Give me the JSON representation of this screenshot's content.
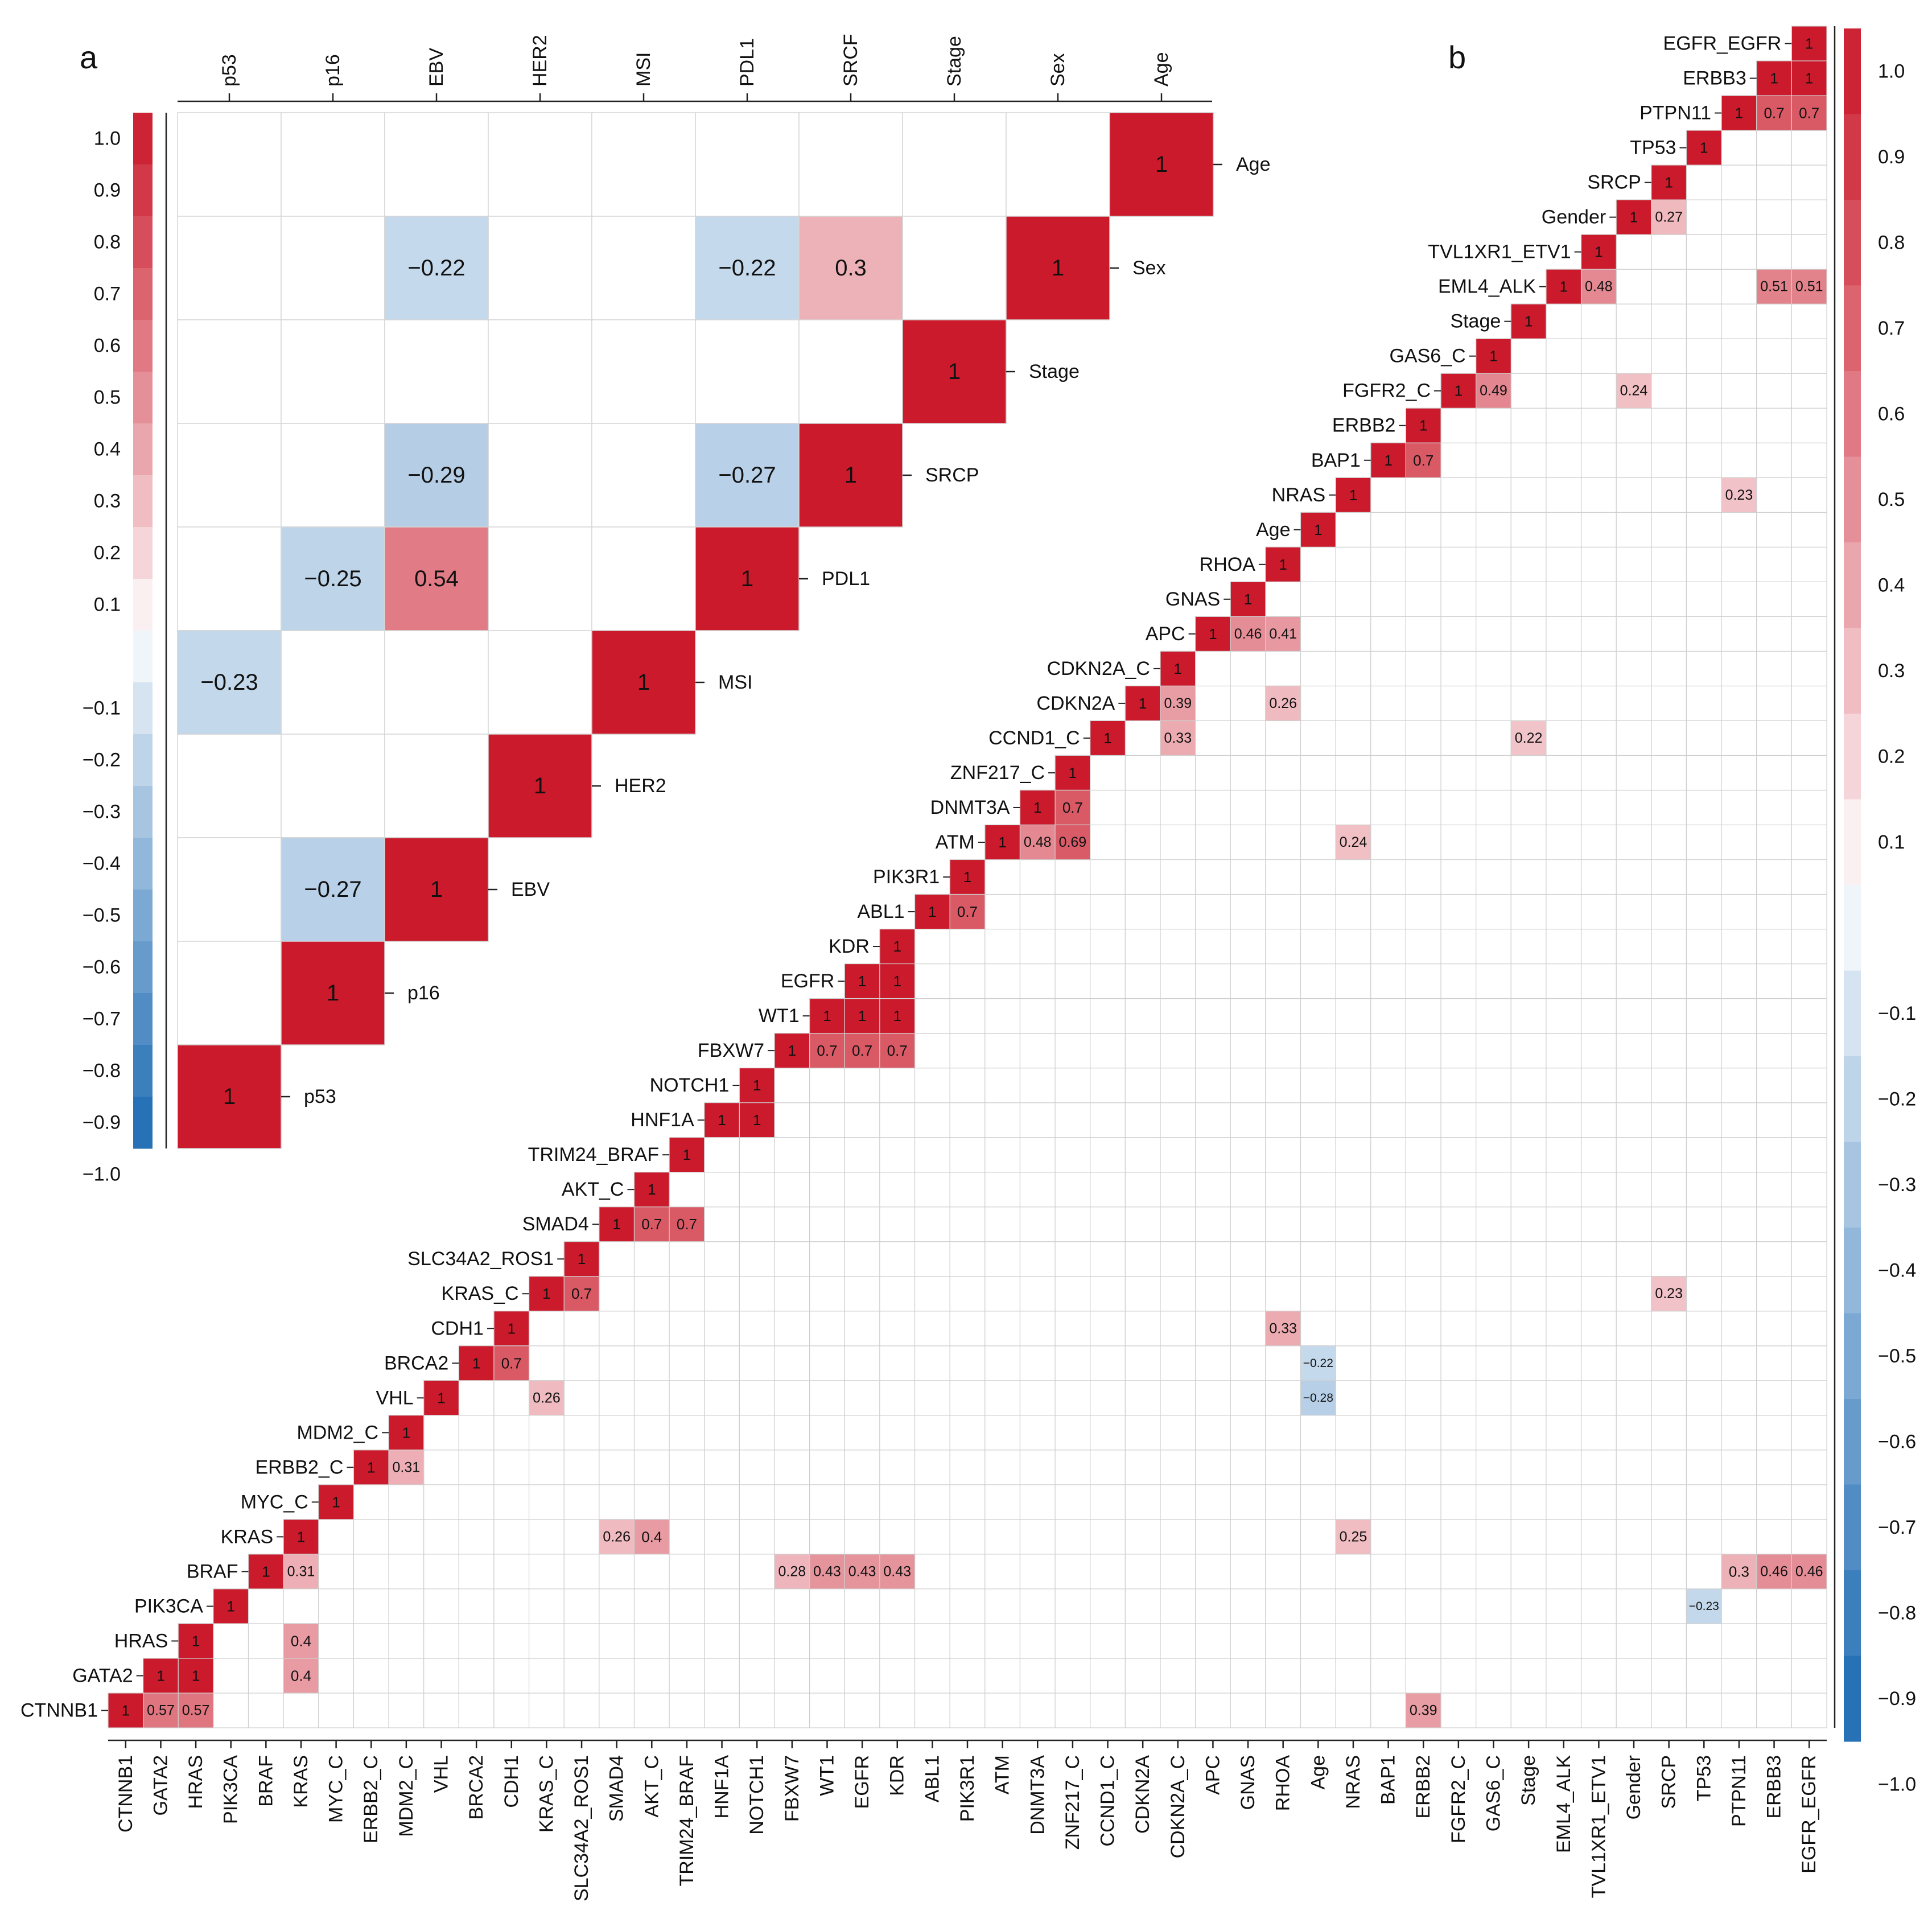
{
  "chart_data": [
    {
      "panel": "a",
      "type": "heatmap",
      "layout": "upper-triangle-correlation",
      "variables": [
        "p53",
        "p16",
        "EBV",
        "HER2",
        "MSI",
        "PDL1",
        "SRCF",
        "Stage",
        "Sex",
        "Age"
      ],
      "row_labels": [
        "Age",
        "Sex",
        "Stage",
        "SRCP",
        "PDL1",
        "MSI",
        "HER2",
        "EBV",
        "p16",
        "p53"
      ],
      "cells": [
        {
          "row": "Age",
          "col": "Age",
          "value": 1,
          "label": "1"
        },
        {
          "row": "Sex",
          "col": "EBV",
          "value": -0.22,
          "label": "−0.22"
        },
        {
          "row": "Sex",
          "col": "PDL1",
          "value": -0.22,
          "label": "−0.22"
        },
        {
          "row": "Sex",
          "col": "SRCF",
          "value": 0.3,
          "label": "0.3"
        },
        {
          "row": "Sex",
          "col": "Sex",
          "value": 1,
          "label": "1"
        },
        {
          "row": "Stage",
          "col": "Stage",
          "value": 1,
          "label": "1"
        },
        {
          "row": "SRCP",
          "col": "EBV",
          "value": -0.29,
          "label": "−0.29"
        },
        {
          "row": "SRCP",
          "col": "PDL1",
          "value": -0.27,
          "label": "−0.27"
        },
        {
          "row": "SRCP",
          "col": "SRCF",
          "value": 1,
          "label": "1"
        },
        {
          "row": "PDL1",
          "col": "p16",
          "value": -0.25,
          "label": "−0.25"
        },
        {
          "row": "PDL1",
          "col": "EBV",
          "value": 0.54,
          "label": "0.54"
        },
        {
          "row": "PDL1",
          "col": "PDL1",
          "value": 1,
          "label": "1"
        },
        {
          "row": "MSI",
          "col": "p53",
          "value": -0.23,
          "label": "−0.23"
        },
        {
          "row": "MSI",
          "col": "MSI",
          "value": 1,
          "label": "1"
        },
        {
          "row": "HER2",
          "col": "HER2",
          "value": 1,
          "label": "1"
        },
        {
          "row": "EBV",
          "col": "p16",
          "value": -0.27,
          "label": "−0.27"
        },
        {
          "row": "EBV",
          "col": "EBV",
          "value": 1,
          "label": "1"
        },
        {
          "row": "p16",
          "col": "p16",
          "value": 1,
          "label": "1"
        },
        {
          "row": "p53",
          "col": "p53",
          "value": 1,
          "label": "1"
        }
      ],
      "colorbar": {
        "range": [
          -1,
          1
        ],
        "ticks": [
          "1.0",
          "0.9",
          "0.8",
          "0.7",
          "0.6",
          "0.5",
          "0.4",
          "0.3",
          "0.2",
          "0.1",
          "−0.1",
          "−0.2",
          "−0.3",
          "−0.4",
          "−0.5",
          "−0.6",
          "−0.7",
          "−0.8",
          "−0.9",
          "−1.0"
        ]
      }
    },
    {
      "panel": "b",
      "type": "heatmap",
      "layout": "lower-triangle-correlation",
      "variables": [
        "CTNNB1",
        "GATA2",
        "HRAS",
        "PIK3CA",
        "BRAF",
        "KRAS",
        "MYC_C",
        "ERBB2_C",
        "MDM2_C",
        "VHL",
        "BRCA2",
        "CDH1",
        "KRAS_C",
        "SLC34A2_ROS1",
        "SMAD4",
        "AKT_C",
        "TRIM24_BRAF",
        "HNF1A",
        "NOTCH1",
        "FBXW7",
        "WT1",
        "EGFR",
        "KDR",
        "ABL1",
        "PIK3R1",
        "ATM",
        "DNMT3A",
        "ZNF217_C",
        "CCND1_C",
        "CDKN2A",
        "CDKN2A_C",
        "APC",
        "GNAS",
        "RHOA",
        "Age",
        "NRAS",
        "BAP1",
        "ERBB2",
        "FGFR2_C",
        "GAS6_C",
        "Stage",
        "EML4_ALK",
        "TVL1XR1_ETV1",
        "Gender",
        "SRCP",
        "TP53",
        "PTPN11",
        "ERBB3",
        "EGFR_EGFR"
      ],
      "cells": [
        {
          "row": "EGFR_EGFR",
          "col": "EGFR_EGFR",
          "value": 1,
          "label": "1"
        },
        {
          "row": "ERBB3",
          "col": "ERBB3",
          "value": 1,
          "label": "1"
        },
        {
          "row": "ERBB3",
          "col": "EGFR_EGFR",
          "value": 1,
          "label": "1"
        },
        {
          "row": "PTPN11",
          "col": "PTPN11",
          "value": 1,
          "label": "1"
        },
        {
          "row": "PTPN11",
          "col": "ERBB3",
          "value": 0.7,
          "label": "0.7"
        },
        {
          "row": "PTPN11",
          "col": "EGFR_EGFR",
          "value": 0.7,
          "label": "0.7"
        },
        {
          "row": "TP53",
          "col": "TP53",
          "value": 1,
          "label": "1"
        },
        {
          "row": "SRCP",
          "col": "SRCP",
          "value": 1,
          "label": "1"
        },
        {
          "row": "Gender",
          "col": "Gender",
          "value": 1,
          "label": "1"
        },
        {
          "row": "Gender",
          "col": "SRCP",
          "value": 0.27,
          "label": "0.27"
        },
        {
          "row": "TVL1XR1_ETV1",
          "col": "TVL1XR1_ETV1",
          "value": 1,
          "label": "1"
        },
        {
          "row": "EML4_ALK",
          "col": "EML4_ALK",
          "value": 1,
          "label": "1"
        },
        {
          "row": "EML4_ALK",
          "col": "TVL1XR1_ETV1",
          "value": 0.48,
          "label": "0.48"
        },
        {
          "row": "EML4_ALK",
          "col": "ERBB3",
          "value": 0.51,
          "label": "0.51"
        },
        {
          "row": "EML4_ALK",
          "col": "EGFR_EGFR",
          "value": 0.51,
          "label": "0.51"
        },
        {
          "row": "Stage",
          "col": "Stage",
          "value": 1,
          "label": "1"
        },
        {
          "row": "GAS6_C",
          "col": "GAS6_C",
          "value": 1,
          "label": "1"
        },
        {
          "row": "FGFR2_C",
          "col": "FGFR2_C",
          "value": 1,
          "label": "1"
        },
        {
          "row": "FGFR2_C",
          "col": "GAS6_C",
          "value": 0.49,
          "label": "0.49"
        },
        {
          "row": "FGFR2_C",
          "col": "Gender",
          "value": 0.24,
          "label": "0.24"
        },
        {
          "row": "ERBB2",
          "col": "ERBB2",
          "value": 1,
          "label": "1"
        },
        {
          "row": "BAP1",
          "col": "BAP1",
          "value": 1,
          "label": "1"
        },
        {
          "row": "BAP1",
          "col": "ERBB2",
          "value": 0.7,
          "label": "0.7"
        },
        {
          "row": "NRAS",
          "col": "NRAS",
          "value": 1,
          "label": "1"
        },
        {
          "row": "NRAS",
          "col": "PTPN11",
          "value": 0.23,
          "label": "0.23"
        },
        {
          "row": "Age",
          "col": "Age",
          "value": 1,
          "label": "1"
        },
        {
          "row": "RHOA",
          "col": "RHOA",
          "value": 1,
          "label": "1"
        },
        {
          "row": "GNAS",
          "col": "GNAS",
          "value": 1,
          "label": "1"
        },
        {
          "row": "APC",
          "col": "APC",
          "value": 1,
          "label": "1"
        },
        {
          "row": "APC",
          "col": "GNAS",
          "value": 0.46,
          "label": "0.46"
        },
        {
          "row": "APC",
          "col": "RHOA",
          "value": 0.41,
          "label": "0.41"
        },
        {
          "row": "CDKN2A_C",
          "col": "CDKN2A_C",
          "value": 1,
          "label": "1"
        },
        {
          "row": "CDKN2A",
          "col": "CDKN2A",
          "value": 1,
          "label": "1"
        },
        {
          "row": "CDKN2A",
          "col": "CDKN2A_C",
          "value": 0.39,
          "label": "0.39"
        },
        {
          "row": "CDKN2A",
          "col": "RHOA",
          "value": 0.26,
          "label": "0.26"
        },
        {
          "row": "CCND1_C",
          "col": "CCND1_C",
          "value": 1,
          "label": "1"
        },
        {
          "row": "CCND1_C",
          "col": "CDKN2A_C",
          "value": 0.33,
          "label": "0.33"
        },
        {
          "row": "CCND1_C",
          "col": "Stage",
          "value": 0.22,
          "label": "0.22"
        },
        {
          "row": "ZNF217_C",
          "col": "ZNF217_C",
          "value": 1,
          "label": "1"
        },
        {
          "row": "DNMT3A",
          "col": "DNMT3A",
          "value": 1,
          "label": "1"
        },
        {
          "row": "DNMT3A",
          "col": "ZNF217_C",
          "value": 0.7,
          "label": "0.7"
        },
        {
          "row": "ATM",
          "col": "ATM",
          "value": 1,
          "label": "1"
        },
        {
          "row": "ATM",
          "col": "DNMT3A",
          "value": 0.48,
          "label": "0.48"
        },
        {
          "row": "ATM",
          "col": "ZNF217_C",
          "value": 0.69,
          "label": "0.69"
        },
        {
          "row": "ATM",
          "col": "NRAS",
          "value": 0.24,
          "label": "0.24"
        },
        {
          "row": "PIK3R1",
          "col": "PIK3R1",
          "value": 1,
          "label": "1"
        },
        {
          "row": "ABL1",
          "col": "ABL1",
          "value": 1,
          "label": "1"
        },
        {
          "row": "ABL1",
          "col": "PIK3R1",
          "value": 0.7,
          "label": "0.7"
        },
        {
          "row": "KDR",
          "col": "KDR",
          "value": 1,
          "label": "1"
        },
        {
          "row": "EGFR",
          "col": "EGFR",
          "value": 1,
          "label": "1"
        },
        {
          "row": "EGFR",
          "col": "KDR",
          "value": 1,
          "label": "1"
        },
        {
          "row": "WT1",
          "col": "WT1",
          "value": 1,
          "label": "1"
        },
        {
          "row": "WT1",
          "col": "EGFR",
          "value": 1,
          "label": "1"
        },
        {
          "row": "WT1",
          "col": "KDR",
          "value": 1,
          "label": "1"
        },
        {
          "row": "FBXW7",
          "col": "FBXW7",
          "value": 1,
          "label": "1"
        },
        {
          "row": "FBXW7",
          "col": "WT1",
          "value": 0.7,
          "label": "0.7"
        },
        {
          "row": "FBXW7",
          "col": "EGFR",
          "value": 0.7,
          "label": "0.7"
        },
        {
          "row": "FBXW7",
          "col": "KDR",
          "value": 0.7,
          "label": "0.7"
        },
        {
          "row": "NOTCH1",
          "col": "NOTCH1",
          "value": 1,
          "label": "1"
        },
        {
          "row": "HNF1A",
          "col": "HNF1A",
          "value": 1,
          "label": "1"
        },
        {
          "row": "HNF1A",
          "col": "NOTCH1",
          "value": 1,
          "label": "1"
        },
        {
          "row": "TRIM24_BRAF",
          "col": "TRIM24_BRAF",
          "value": 1,
          "label": "1"
        },
        {
          "row": "AKT_C",
          "col": "AKT_C",
          "value": 1,
          "label": "1"
        },
        {
          "row": "SMAD4",
          "col": "SMAD4",
          "value": 1,
          "label": "1"
        },
        {
          "row": "SMAD4",
          "col": "AKT_C",
          "value": 0.7,
          "label": "0.7"
        },
        {
          "row": "SMAD4",
          "col": "TRIM24_BRAF",
          "value": 0.7,
          "label": "0.7"
        },
        {
          "row": "SLC34A2_ROS1",
          "col": "SLC34A2_ROS1",
          "value": 1,
          "label": "1"
        },
        {
          "row": "KRAS_C",
          "col": "KRAS_C",
          "value": 1,
          "label": "1"
        },
        {
          "row": "KRAS_C",
          "col": "SLC34A2_ROS1",
          "value": 0.7,
          "label": "0.7"
        },
        {
          "row": "KRAS_C",
          "col": "SRCP",
          "value": 0.23,
          "label": "0.23"
        },
        {
          "row": "CDH1",
          "col": "CDH1",
          "value": 1,
          "label": "1"
        },
        {
          "row": "CDH1",
          "col": "RHOA",
          "value": 0.33,
          "label": "0.33"
        },
        {
          "row": "BRCA2",
          "col": "BRCA2",
          "value": 1,
          "label": "1"
        },
        {
          "row": "BRCA2",
          "col": "CDH1",
          "value": 0.7,
          "label": "0.7"
        },
        {
          "row": "BRCA2",
          "col": "Age",
          "value": -0.22,
          "label": "−0.22"
        },
        {
          "row": "VHL",
          "col": "VHL",
          "value": 1,
          "label": "1"
        },
        {
          "row": "VHL",
          "col": "KRAS_C",
          "value": 0.26,
          "label": "0.26"
        },
        {
          "row": "VHL",
          "col": "Age",
          "value": -0.28,
          "label": "−0.28"
        },
        {
          "row": "MDM2_C",
          "col": "MDM2_C",
          "value": 1,
          "label": "1"
        },
        {
          "row": "ERBB2_C",
          "col": "ERBB2_C",
          "value": 1,
          "label": "1"
        },
        {
          "row": "ERBB2_C",
          "col": "MDM2_C",
          "value": 0.31,
          "label": "0.31"
        },
        {
          "row": "MYC_C",
          "col": "MYC_C",
          "value": 1,
          "label": "1"
        },
        {
          "row": "KRAS",
          "col": "KRAS",
          "value": 1,
          "label": "1"
        },
        {
          "row": "KRAS",
          "col": "SMAD4",
          "value": 0.26,
          "label": "0.26"
        },
        {
          "row": "KRAS",
          "col": "AKT_C",
          "value": 0.4,
          "label": "0.4"
        },
        {
          "row": "KRAS",
          "col": "NRAS",
          "value": 0.25,
          "label": "0.25"
        },
        {
          "row": "BRAF",
          "col": "BRAF",
          "value": 1,
          "label": "1"
        },
        {
          "row": "BRAF",
          "col": "KRAS",
          "value": 0.31,
          "label": "0.31"
        },
        {
          "row": "BRAF",
          "col": "FBXW7",
          "value": 0.28,
          "label": "0.28"
        },
        {
          "row": "BRAF",
          "col": "WT1",
          "value": 0.43,
          "label": "0.43"
        },
        {
          "row": "BRAF",
          "col": "EGFR",
          "value": 0.43,
          "label": "0.43"
        },
        {
          "row": "BRAF",
          "col": "KDR",
          "value": 0.43,
          "label": "0.43"
        },
        {
          "row": "BRAF",
          "col": "PTPN11",
          "value": 0.3,
          "label": "0.3"
        },
        {
          "row": "BRAF",
          "col": "ERBB3",
          "value": 0.46,
          "label": "0.46"
        },
        {
          "row": "BRAF",
          "col": "EGFR_EGFR",
          "value": 0.46,
          "label": "0.46"
        },
        {
          "row": "PIK3CA",
          "col": "PIK3CA",
          "value": 1,
          "label": "1"
        },
        {
          "row": "PIK3CA",
          "col": "TP53",
          "value": -0.23,
          "label": "−0.23"
        },
        {
          "row": "HRAS",
          "col": "HRAS",
          "value": 1,
          "label": "1"
        },
        {
          "row": "HRAS",
          "col": "KRAS",
          "value": 0.4,
          "label": "0.4"
        },
        {
          "row": "GATA2",
          "col": "GATA2",
          "value": 1,
          "label": "1"
        },
        {
          "row": "GATA2",
          "col": "HRAS",
          "value": 1,
          "label": "1"
        },
        {
          "row": "GATA2",
          "col": "KRAS",
          "value": 0.4,
          "label": "0.4"
        },
        {
          "row": "CTNNB1",
          "col": "CTNNB1",
          "value": 1,
          "label": "1"
        },
        {
          "row": "CTNNB1",
          "col": "GATA2",
          "value": 0.57,
          "label": "0.57"
        },
        {
          "row": "CTNNB1",
          "col": "HRAS",
          "value": 0.57,
          "label": "0.57"
        },
        {
          "row": "CTNNB1",
          "col": "ERBB2",
          "value": 0.39,
          "label": "0.39"
        }
      ],
      "colorbar": {
        "range": [
          -1,
          1
        ],
        "ticks": [
          "1.0",
          "0.9",
          "0.8",
          "0.7",
          "0.6",
          "0.5",
          "0.4",
          "0.3",
          "0.2",
          "0.1",
          "−0.1",
          "−0.2",
          "−0.3",
          "−0.4",
          "−0.5",
          "−0.6",
          "−0.7",
          "−0.8",
          "−0.9",
          "−1.0"
        ]
      }
    }
  ],
  "panels": {
    "a": "a",
    "b": "b"
  },
  "colors": {
    "positive": "#CA1A2B",
    "negative": "#1D6BB3",
    "neutral": "#FFFFFF",
    "grid": "#C8C8C8"
  }
}
